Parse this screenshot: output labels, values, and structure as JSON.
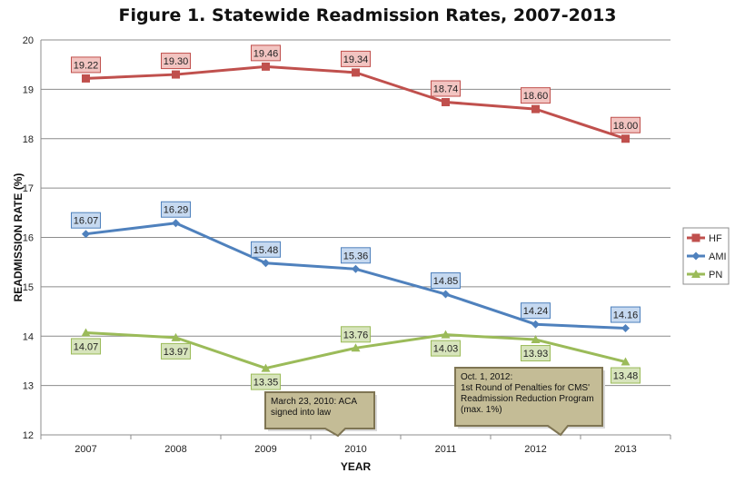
{
  "chart_data": {
    "type": "line",
    "title": "Figure 1. Statewide Readmission Rates, 2007-2013",
    "xlabel": "YEAR",
    "ylabel": "READMISSION RATE (%)",
    "ylim": [
      12,
      20
    ],
    "yticks": [
      "12",
      "13",
      "14",
      "15",
      "16",
      "17",
      "18",
      "19",
      "20"
    ],
    "categories": [
      "2007",
      "2008",
      "2009",
      "2010",
      "2011",
      "2012",
      "2013"
    ],
    "grid": true,
    "legend_position": "right",
    "series": [
      {
        "name": "HF",
        "color": "#c0504d",
        "label_fill": "#f2c4c1",
        "label_stroke": "#c0504d",
        "marker": "square",
        "values": [
          19.22,
          19.3,
          19.46,
          19.34,
          18.74,
          18.6,
          18.0
        ],
        "labels": [
          "19.22",
          "19.30",
          "19.46",
          "19.34",
          "18.74",
          "18.60",
          "18.00"
        ]
      },
      {
        "name": "AMI",
        "color": "#4f81bd",
        "label_fill": "#c6d9f0",
        "label_stroke": "#4f81bd",
        "marker": "diamond",
        "values": [
          16.07,
          16.29,
          15.48,
          15.36,
          14.85,
          14.24,
          14.16
        ],
        "labels": [
          "16.07",
          "16.29",
          "15.48",
          "15.36",
          "14.85",
          "14.24",
          "14.16"
        ]
      },
      {
        "name": "PN",
        "color": "#9bbb59",
        "label_fill": "#d7e4bc",
        "label_stroke": "#9bbb59",
        "marker": "triangle",
        "values": [
          14.07,
          13.97,
          13.35,
          13.76,
          14.03,
          13.93,
          13.48
        ],
        "labels": [
          "14.07",
          "13.97",
          "13.35",
          "13.76",
          "14.03",
          "13.93",
          "13.48"
        ]
      }
    ],
    "annotations": [
      {
        "lines": [
          "March 23, 2010: ACA",
          "signed into law"
        ],
        "fill": "#c4bc96",
        "stroke": "#7f7553"
      },
      {
        "lines": [
          "Oct. 1, 2012:",
          "1st Round of Penalties for CMS'",
          "Readmission Reduction Program",
          "(max. 1%)"
        ],
        "fill": "#c4bc96",
        "stroke": "#7f7553"
      }
    ]
  }
}
